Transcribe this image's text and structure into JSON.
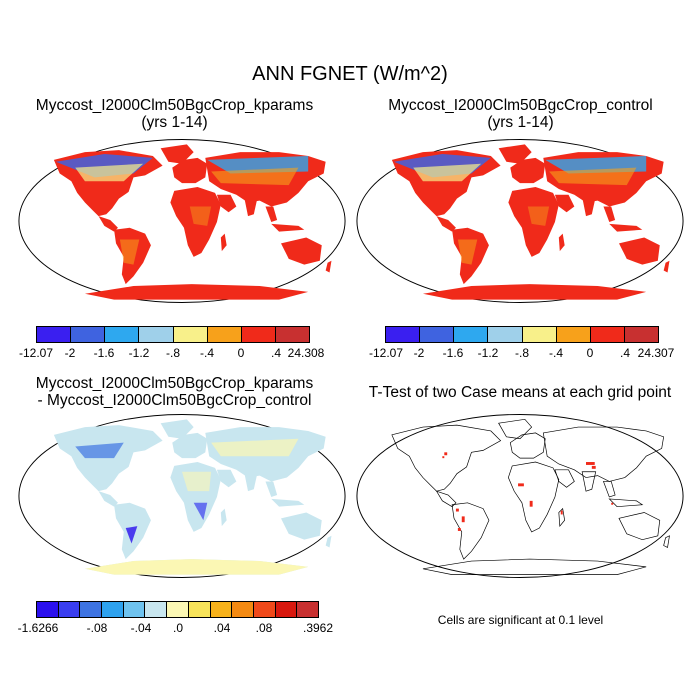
{
  "figure_title": "ANN FGNET (W/m^2)",
  "panels": [
    {
      "title_line1": "Myccost_I2000Clm50BgcCrop_kparams",
      "title_line2": "(yrs 1-14)"
    },
    {
      "title_line1": "Myccost_I2000Clm50BgcCrop_control",
      "title_line2": "(yrs 1-14)"
    },
    {
      "title_line1": "Myccost_I2000Clm50BgcCrop_kparams",
      "title_line2": "- Myccost_I2000Clm50BgcCrop_control"
    },
    {
      "title_line1": "T-Test of two Case means at each grid point",
      "title_line2": ""
    }
  ],
  "colorbars": {
    "kparams": {
      "colors": [
        "#3a1ff0",
        "#3f63e0",
        "#2ea8ef",
        "#9fd0ea",
        "#f8f08a",
        "#f7a11b",
        "#f02a1a",
        "#c83030"
      ],
      "labels": [
        "-12.07",
        "-2",
        "-1.6",
        "-1.2",
        "-.8",
        "-.4",
        "0",
        ".4",
        "24.308"
      ]
    },
    "control": {
      "colors": [
        "#3a1ff0",
        "#3f63e0",
        "#2ea8ef",
        "#9fd0ea",
        "#f8f08a",
        "#f7a11b",
        "#f02a1a",
        "#c83030"
      ],
      "labels": [
        "-12.07",
        "-2",
        "-1.6",
        "-1.2",
        "-.8",
        "-.4",
        "0",
        ".4",
        "24.307"
      ]
    },
    "difference": {
      "colors": [
        "#2b10ee",
        "#3a3ef0",
        "#3d73e2",
        "#2ea2ef",
        "#6fc3ef",
        "#c8e6ef",
        "#fbf7b4",
        "#f7e35a",
        "#f7b21b",
        "#f48a12",
        "#f0491a",
        "#d8180e",
        "#c83030"
      ],
      "labels": [
        "-1.6266",
        "-.08",
        "-.04",
        ".0",
        ".04",
        ".08",
        ".3962"
      ]
    }
  },
  "significance_note": "Cells are significant at 0.1 level",
  "map_colors": {
    "ocean": "#ffffff",
    "land_warm": "#f02a1a",
    "land_orange": "#f7a11b",
    "land_cool": "#3f63e0",
    "diff_land": "#c8e6ef",
    "diff_antarctica": "#fbf7b4",
    "significant": "#f02a1a"
  }
}
